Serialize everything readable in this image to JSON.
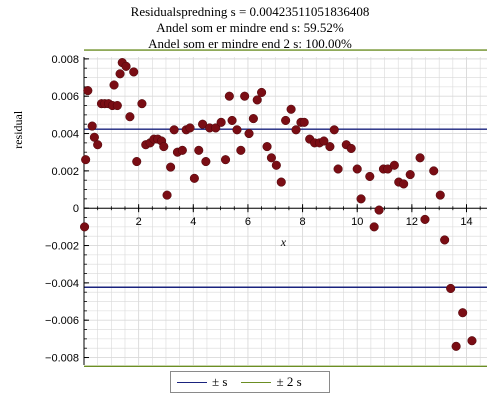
{
  "title": {
    "line1": "Residualspredning s = 0.00423511051836408",
    "line2": "Andel som er mindre end s: 59.52%",
    "line3": "Andel som er mindre end 2 s: 100.00%"
  },
  "colors": {
    "points": "#7a0d14",
    "s_lines": "#1a237e",
    "two_s_lines": "#6b8e23",
    "grid": "#d9d9d9",
    "axis": "#000000"
  },
  "legend": {
    "placement": "bottom-center",
    "items": [
      {
        "label": "± s",
        "color": "#1a237e"
      },
      {
        "label": "± 2 s",
        "color": "#6b8e23"
      }
    ]
  },
  "chart_data": {
    "type": "scatter",
    "title": "Residualspredning s = 0.00423511051836408",
    "xlabel": "x",
    "ylabel": "residual",
    "xlim": [
      0,
      14.75
    ],
    "ylim": [
      -0.0084,
      0.0081
    ],
    "grid": true,
    "x_ticks": [
      {
        "v": 2,
        "label": "2"
      },
      {
        "v": 4,
        "label": "4"
      },
      {
        "v": 6,
        "label": "6"
      },
      {
        "v": 8,
        "label": "8"
      },
      {
        "v": 10,
        "label": "10"
      },
      {
        "v": 12,
        "label": "12"
      },
      {
        "v": 14,
        "label": "14"
      }
    ],
    "y_ticks": [
      {
        "v": 0.008,
        "label": "0.008"
      },
      {
        "v": 0.006,
        "label": "0.006"
      },
      {
        "v": 0.004,
        "label": "0.004"
      },
      {
        "v": 0.002,
        "label": "0.002"
      },
      {
        "v": 0,
        "label": "0"
      },
      {
        "v": -0.002,
        "label": "−0.002"
      },
      {
        "v": -0.004,
        "label": "−0.004"
      },
      {
        "v": -0.006,
        "label": "−0.006"
      },
      {
        "v": -0.008,
        "label": "−0.008"
      }
    ],
    "hlines": [
      {
        "y": 0.0042351,
        "color": "#1a237e"
      },
      {
        "y": -0.0042351,
        "color": "#1a237e"
      },
      {
        "y": 0.0084702,
        "color": "#6b8e23"
      },
      {
        "y": -0.0084702,
        "color": "#6b8e23"
      }
    ],
    "points": [
      [
        0.02,
        -0.001
      ],
      [
        0.06,
        0.0026
      ],
      [
        0.14,
        0.0063
      ],
      [
        0.3,
        0.0044
      ],
      [
        0.38,
        0.0038
      ],
      [
        0.5,
        0.0034
      ],
      [
        0.64,
        0.0056
      ],
      [
        0.76,
        0.0056
      ],
      [
        0.9,
        0.0056
      ],
      [
        1.04,
        0.0055
      ],
      [
        1.1,
        0.0066
      ],
      [
        1.22,
        0.0055
      ],
      [
        1.32,
        0.0072
      ],
      [
        1.4,
        0.0078
      ],
      [
        1.54,
        0.0076
      ],
      [
        1.68,
        0.0049
      ],
      [
        1.82,
        0.0073
      ],
      [
        1.93,
        0.0025
      ],
      [
        2.12,
        0.0056
      ],
      [
        2.26,
        0.0034
      ],
      [
        2.42,
        0.0035
      ],
      [
        2.56,
        0.0037
      ],
      [
        2.7,
        0.0037
      ],
      [
        2.84,
        0.0036
      ],
      [
        2.92,
        0.0033
      ],
      [
        3.04,
        0.0007
      ],
      [
        3.17,
        0.0022
      ],
      [
        3.3,
        0.0042
      ],
      [
        3.42,
        0.003
      ],
      [
        3.6,
        0.0031
      ],
      [
        3.74,
        0.0042
      ],
      [
        3.88,
        0.0043
      ],
      [
        4.04,
        0.0016
      ],
      [
        4.2,
        0.0031
      ],
      [
        4.34,
        0.0045
      ],
      [
        4.46,
        0.0025
      ],
      [
        4.6,
        0.0043
      ],
      [
        4.82,
        0.0043
      ],
      [
        5.02,
        0.0046
      ],
      [
        5.18,
        0.0026
      ],
      [
        5.32,
        0.006
      ],
      [
        5.42,
        0.0047
      ],
      [
        5.6,
        0.0042
      ],
      [
        5.74,
        0.0031
      ],
      [
        5.88,
        0.006
      ],
      [
        6.04,
        0.004
      ],
      [
        6.2,
        0.0048
      ],
      [
        6.34,
        0.0058
      ],
      [
        6.5,
        0.0062
      ],
      [
        6.7,
        0.0033
      ],
      [
        6.86,
        0.0027
      ],
      [
        7.04,
        0.0023
      ],
      [
        7.22,
        0.0014
      ],
      [
        7.38,
        0.0047
      ],
      [
        7.58,
        0.0053
      ],
      [
        7.76,
        0.0042
      ],
      [
        7.94,
        0.0046
      ],
      [
        8.06,
        0.0046
      ],
      [
        8.26,
        0.0037
      ],
      [
        8.44,
        0.0035
      ],
      [
        8.62,
        0.0035
      ],
      [
        8.78,
        0.0036
      ],
      [
        9.0,
        0.0033
      ],
      [
        9.16,
        0.0042
      ],
      [
        9.3,
        0.0021
      ],
      [
        9.6,
        0.0034
      ],
      [
        9.78,
        0.0032
      ],
      [
        10.0,
        0.0021
      ],
      [
        10.14,
        0.0005
      ],
      [
        10.46,
        0.0017
      ],
      [
        10.62,
        -0.001
      ],
      [
        10.8,
        -0.0001
      ],
      [
        10.96,
        0.0021
      ],
      [
        11.12,
        0.0021
      ],
      [
        11.36,
        0.0023
      ],
      [
        11.52,
        0.0014
      ],
      [
        11.7,
        0.0013
      ],
      [
        11.94,
        0.0018
      ],
      [
        12.3,
        0.0027
      ],
      [
        12.48,
        -0.0006
      ],
      [
        12.8,
        0.002
      ],
      [
        13.04,
        0.0007
      ],
      [
        13.2,
        -0.0017
      ],
      [
        13.42,
        -0.0043
      ],
      [
        13.62,
        -0.0074
      ],
      [
        13.86,
        -0.0056
      ],
      [
        14.2,
        -0.0071
      ]
    ]
  }
}
